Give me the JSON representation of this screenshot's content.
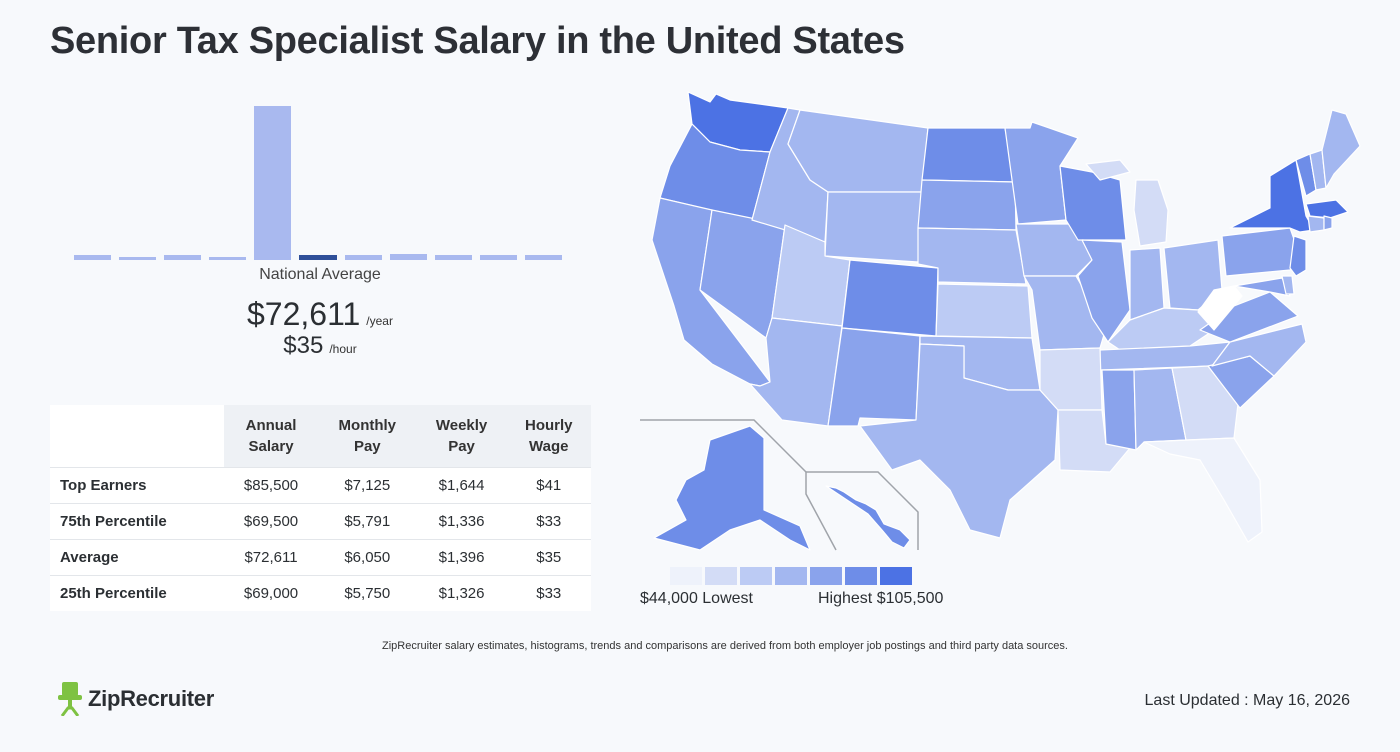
{
  "title": "Senior Tax Specialist Salary in the United States",
  "histogram": {
    "label": "National Average",
    "annual_value": "$72,611",
    "annual_unit": "/year",
    "hourly_value": "$35",
    "hourly_unit": "/hour",
    "bar_heights_relative": [
      0.03,
      0.02,
      0.03,
      0.02,
      1.0,
      0.03,
      0.03,
      0.04,
      0.03,
      0.03,
      0.03
    ],
    "highlight_index": 5,
    "colors": {
      "bar": "#a9b9ef",
      "highlight": "#2f4f99"
    }
  },
  "table": {
    "headers": [
      {
        "line1": "Annual",
        "line2": "Salary"
      },
      {
        "line1": "Monthly",
        "line2": "Pay"
      },
      {
        "line1": "Weekly",
        "line2": "Pay"
      },
      {
        "line1": "Hourly",
        "line2": "Wage"
      }
    ],
    "rows": [
      {
        "label": "Top Earners",
        "values": [
          "$85,500",
          "$7,125",
          "$1,644",
          "$41"
        ]
      },
      {
        "label": "75th Percentile",
        "values": [
          "$69,500",
          "$5,791",
          "$1,336",
          "$33"
        ]
      },
      {
        "label": "Average",
        "values": [
          "$72,611",
          "$6,050",
          "$1,396",
          "$35"
        ]
      },
      {
        "label": "25th Percentile",
        "values": [
          "$69,000",
          "$5,750",
          "$1,326",
          "$33"
        ]
      }
    ]
  },
  "map": {
    "legend_low": "$44,000 Lowest",
    "legend_high": "Highest $105,500",
    "legend_colors": [
      "#eef2fb",
      "#d3dcf6",
      "#bccbf4",
      "#a3b7f0",
      "#8aa3ec",
      "#6e8de8",
      "#4c72e4"
    ]
  },
  "footnote": "ZipRecruiter salary estimates, histograms, trends and comparisons are derived from both employer job postings and third party data sources.",
  "brand": {
    "name": "ZipRecruiter",
    "color": "#7ec242"
  },
  "updated": "Last Updated : May 16, 2026"
}
